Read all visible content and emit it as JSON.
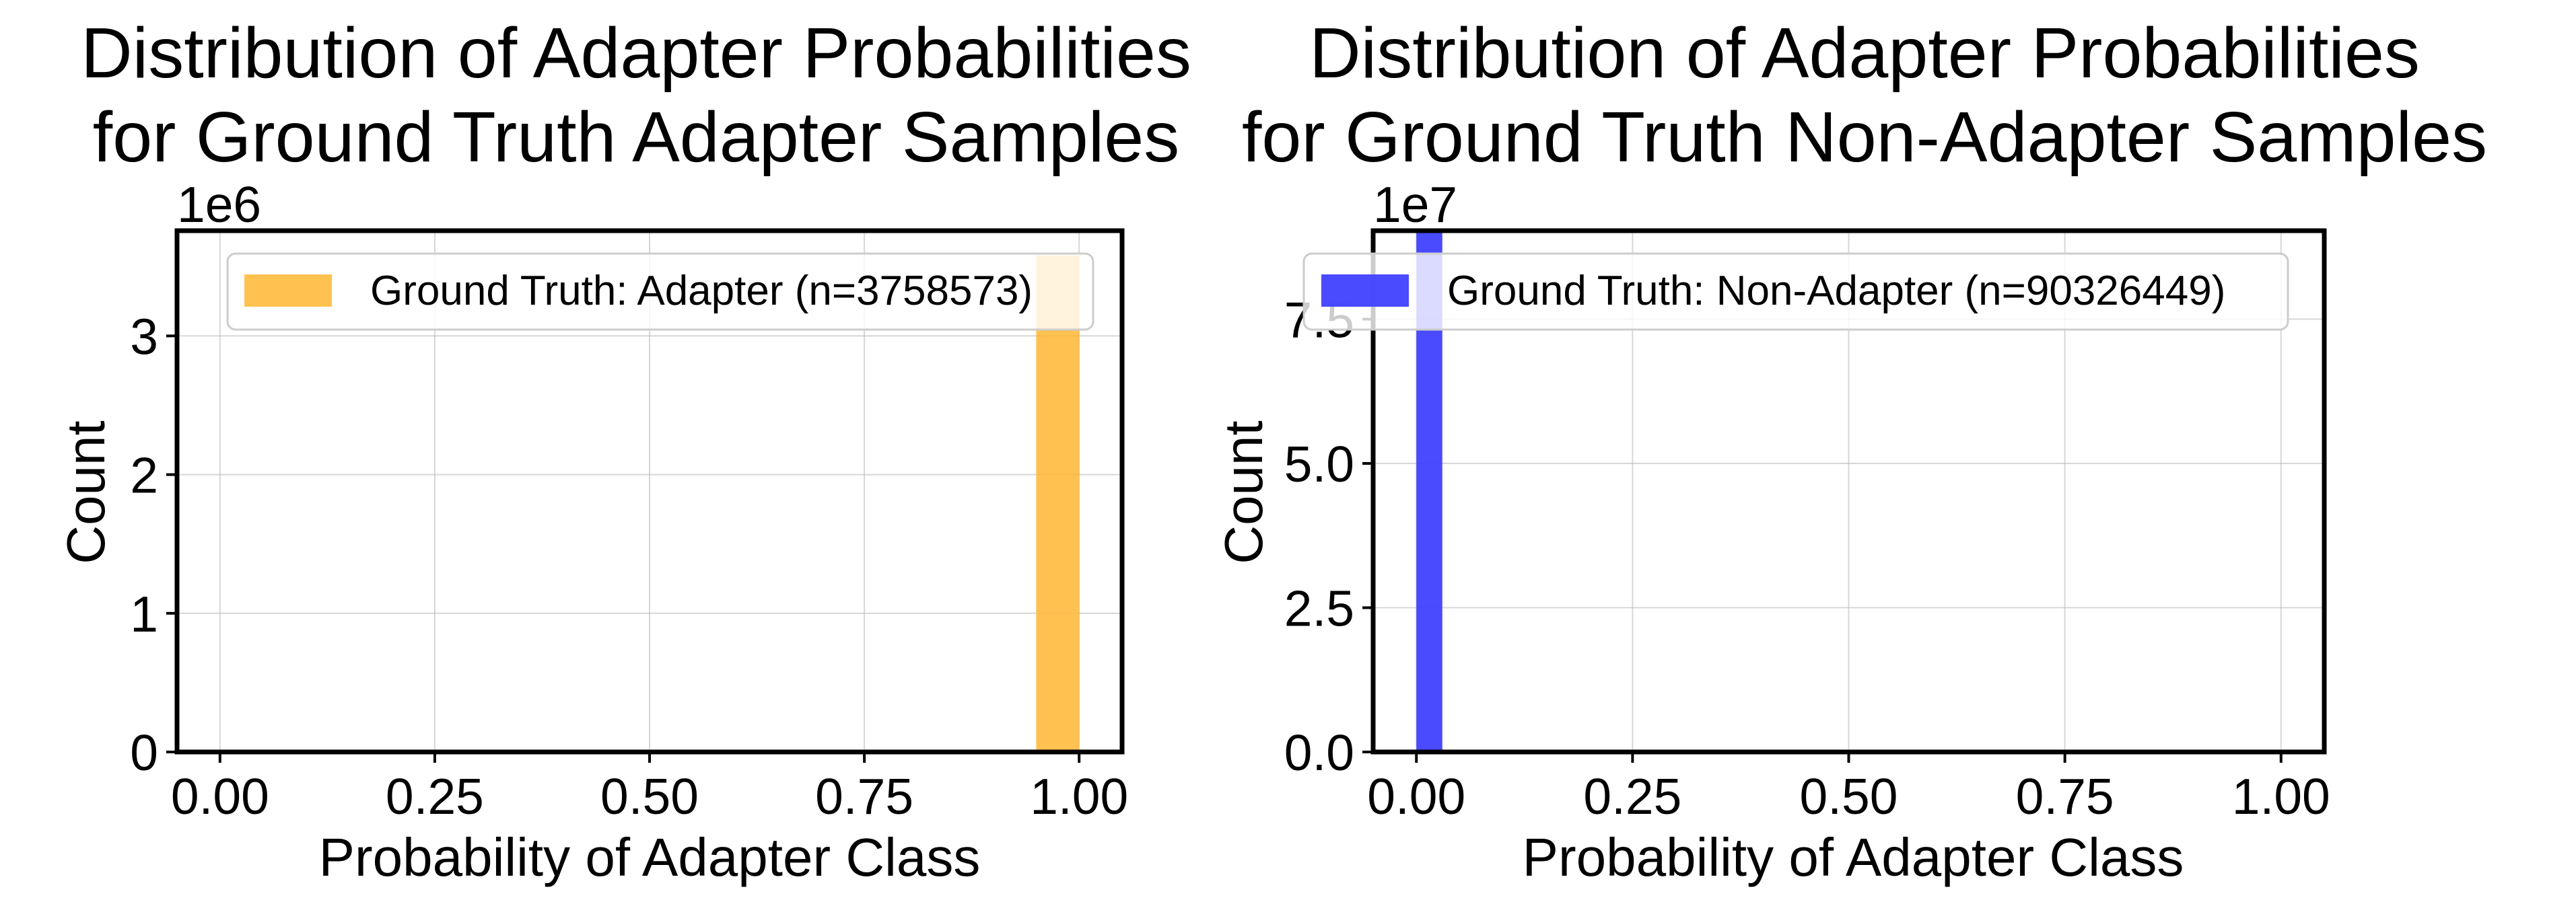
{
  "chart_data": [
    {
      "type": "bar",
      "title_lines": [
        "Distribution of Adapter Probabilities",
        "for Ground Truth Adapter Samples"
      ],
      "xlabel": "Probability of Adapter Class",
      "ylabel": "Count",
      "offset_label": "1e6",
      "xlim": [
        -0.05,
        1.05
      ],
      "ylim": [
        0,
        3758573
      ],
      "x_ticks": [
        0,
        0.25,
        0.5,
        0.75,
        1
      ],
      "x_tick_labels": [
        "0.00",
        "0.25",
        "0.50",
        "0.75",
        "1.00"
      ],
      "y_ticks": [
        0,
        1000000,
        2000000,
        3000000
      ],
      "y_tick_labels": [
        "0",
        "1",
        "2",
        "3"
      ],
      "grid": true,
      "legend_position": "top-right",
      "color": "#FFB732",
      "series": [
        {
          "name": "Ground Truth: Adapter (n=3758573)",
          "bins": [
            {
              "x0": 0.9,
              "x1": 0.95,
              "count": 2000
            },
            {
              "x0": 0.95,
              "x1": 1.0,
              "count": 3580000
            }
          ]
        }
      ]
    },
    {
      "type": "bar",
      "title_lines": [
        "Distribution of Adapter Probabilities",
        "for Ground Truth Non-Adapter Samples"
      ],
      "xlabel": "Probability of Adapter Class",
      "ylabel": "Count",
      "offset_label": "1e7",
      "xlim": [
        -0.05,
        1.05
      ],
      "ylim": [
        0,
        90326449
      ],
      "x_ticks": [
        0,
        0.25,
        0.5,
        0.75,
        1
      ],
      "x_tick_labels": [
        "0.00",
        "0.25",
        "0.50",
        "0.75",
        "1.00"
      ],
      "y_ticks": [
        0,
        25000000,
        50000000,
        75000000
      ],
      "y_tick_labels": [
        "0.0",
        "2.5",
        "5.0",
        "7.5"
      ],
      "grid": true,
      "legend_position": "top-left",
      "color": "#4040FF",
      "series": [
        {
          "name": "Ground Truth: Non-Adapter (n=90326449)",
          "bins": [
            {
              "x0": 0.0,
              "x1": 0.03,
              "count": 90000000
            }
          ]
        }
      ]
    }
  ]
}
